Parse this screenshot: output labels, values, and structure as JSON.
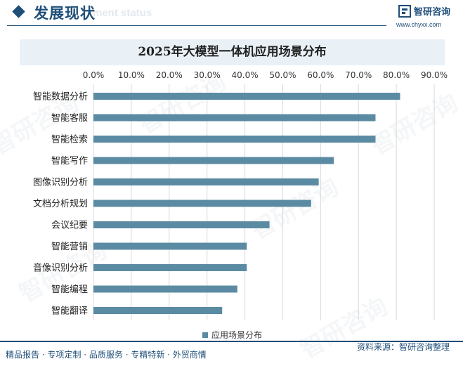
{
  "header": {
    "section_title": "发展现状",
    "section_subtitle": "ment status",
    "brand_name": "智研咨询",
    "brand_url": "www.chyxx.com",
    "accent_color": "#1f4e79"
  },
  "chart_data": {
    "type": "bar",
    "orientation": "horizontal",
    "title": "2025年大模型一体机应用场景分布",
    "categories": [
      "智能数据分析",
      "智能客服",
      "智能检索",
      "智能写作",
      "图像识别分析",
      "文档分析规划",
      "会议纪要",
      "智能营销",
      "音像识别分析",
      "智能编程",
      "智能翻译"
    ],
    "series": [
      {
        "name": "应用场景分布",
        "values": [
          81.0,
          74.5,
          74.5,
          63.5,
          59.5,
          57.5,
          46.5,
          40.5,
          40.5,
          38.0,
          34.0
        ],
        "color": "#5b8ba3"
      }
    ],
    "x_ticks": [
      "0.0%",
      "10.0%",
      "20.0%",
      "30.0%",
      "40.0%",
      "50.0%",
      "60.0%",
      "70.0%",
      "80.0%",
      "90.0%"
    ],
    "xlim": [
      0,
      90
    ],
    "x_axis_position": "top",
    "grid": "vertical",
    "legend_position": "bottom"
  },
  "footer": {
    "left_text": "精品报告 · 专项定制 · 品质服务 · 专精特新 · 外贸商情",
    "source_text": "资料来源：智研咨询整理"
  },
  "watermark": {
    "text": "智研咨询",
    "color": "#1f4e79"
  }
}
